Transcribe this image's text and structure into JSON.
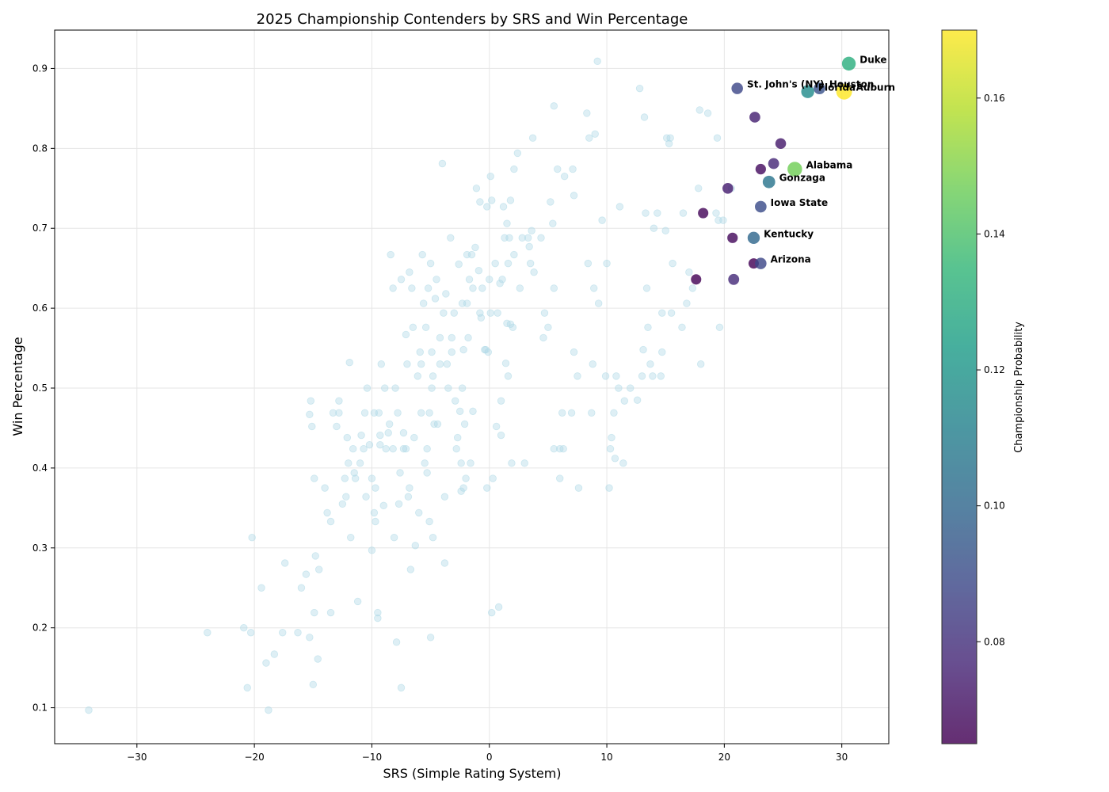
{
  "chart_data": {
    "type": "scatter",
    "title": "2025 Championship Contenders by SRS and Win Percentage",
    "xlabel": "SRS (Simple Rating System)",
    "ylabel": "Win Percentage",
    "xlim": [
      -37,
      34
    ],
    "ylim": [
      0.055,
      0.948
    ],
    "xticks": [
      -30,
      -20,
      -10,
      0,
      10,
      20,
      30
    ],
    "yticks": [
      0.1,
      0.2,
      0.3,
      0.4,
      0.5,
      0.6,
      0.7,
      0.8,
      0.9
    ],
    "grid": true,
    "colorbar": {
      "label": "Championship Probability",
      "range": [
        0.065,
        0.17
      ],
      "ticks": [
        0.08,
        0.1,
        0.12,
        0.14,
        0.16
      ],
      "colormap": "viridis"
    },
    "background_color": "#add8e6",
    "background_points": [
      [
        -34.1,
        0.097
      ],
      [
        -24.0,
        0.194
      ],
      [
        -20.9,
        0.2
      ],
      [
        -20.6,
        0.125
      ],
      [
        -20.3,
        0.194
      ],
      [
        -20.2,
        0.313
      ],
      [
        -19.4,
        0.25
      ],
      [
        -19.0,
        0.156
      ],
      [
        -18.8,
        0.097
      ],
      [
        -18.3,
        0.167
      ],
      [
        -17.6,
        0.194
      ],
      [
        -17.4,
        0.281
      ],
      [
        -16.3,
        0.194
      ],
      [
        -16.0,
        0.25
      ],
      [
        -15.6,
        0.267
      ],
      [
        -15.3,
        0.188
      ],
      [
        -15.2,
        0.484
      ],
      [
        -15.3,
        0.467
      ],
      [
        -15.1,
        0.452
      ],
      [
        -15.0,
        0.129
      ],
      [
        -14.9,
        0.387
      ],
      [
        -14.9,
        0.219
      ],
      [
        -14.8,
        0.29
      ],
      [
        -14.6,
        0.161
      ],
      [
        -14.5,
        0.273
      ],
      [
        -14.0,
        0.375
      ],
      [
        -13.8,
        0.344
      ],
      [
        -13.5,
        0.219
      ],
      [
        -13.5,
        0.333
      ],
      [
        -13.3,
        0.469
      ],
      [
        -13.0,
        0.452
      ],
      [
        -12.8,
        0.484
      ],
      [
        -12.8,
        0.469
      ],
      [
        -12.5,
        0.355
      ],
      [
        -12.3,
        0.387
      ],
      [
        -12.2,
        0.364
      ],
      [
        -12.1,
        0.438
      ],
      [
        -12.0,
        0.406
      ],
      [
        -11.8,
        0.313
      ],
      [
        -11.6,
        0.424
      ],
      [
        -11.5,
        0.394
      ],
      [
        -11.4,
        0.387
      ],
      [
        -11.2,
        0.233
      ],
      [
        -11.0,
        0.406
      ],
      [
        -10.9,
        0.441
      ],
      [
        -10.7,
        0.424
      ],
      [
        -10.6,
        0.469
      ],
      [
        -10.5,
        0.364
      ],
      [
        -10.4,
        0.5
      ],
      [
        -10.2,
        0.429
      ],
      [
        -10.0,
        0.387
      ],
      [
        -10.0,
        0.297
      ],
      [
        -9.8,
        0.469
      ],
      [
        -9.8,
        0.344
      ],
      [
        -9.7,
        0.333
      ],
      [
        -9.7,
        0.375
      ],
      [
        -9.5,
        0.219
      ],
      [
        -9.5,
        0.212
      ],
      [
        -9.4,
        0.469
      ],
      [
        -9.3,
        0.441
      ],
      [
        -9.3,
        0.429
      ],
      [
        -9.2,
        0.53
      ],
      [
        -9.0,
        0.353
      ],
      [
        -8.9,
        0.5
      ],
      [
        -8.8,
        0.424
      ],
      [
        -8.6,
        0.444
      ],
      [
        -8.5,
        0.455
      ],
      [
        -8.4,
        0.667
      ],
      [
        -8.2,
        0.625
      ],
      [
        -8.2,
        0.424
      ],
      [
        -8.1,
        0.313
      ],
      [
        -8.0,
        0.5
      ],
      [
        -7.9,
        0.182
      ],
      [
        -7.8,
        0.469
      ],
      [
        -7.7,
        0.355
      ],
      [
        -7.6,
        0.394
      ],
      [
        -7.5,
        0.636
      ],
      [
        -7.5,
        0.125
      ],
      [
        -7.3,
        0.444
      ],
      [
        -7.3,
        0.424
      ],
      [
        -7.1,
        0.424
      ],
      [
        -7.1,
        0.567
      ],
      [
        -7.0,
        0.53
      ],
      [
        -6.9,
        0.364
      ],
      [
        -6.8,
        0.375
      ],
      [
        -6.8,
        0.645
      ],
      [
        -6.7,
        0.273
      ],
      [
        -6.6,
        0.625
      ],
      [
        -6.5,
        0.576
      ],
      [
        -6.4,
        0.438
      ],
      [
        -6.3,
        0.303
      ],
      [
        -6.1,
        0.515
      ],
      [
        -6.0,
        0.344
      ],
      [
        -5.9,
        0.545
      ],
      [
        -5.8,
        0.469
      ],
      [
        -5.8,
        0.53
      ],
      [
        -5.7,
        0.667
      ],
      [
        -5.6,
        0.606
      ],
      [
        -5.5,
        0.406
      ],
      [
        -5.4,
        0.576
      ],
      [
        -5.3,
        0.424
      ],
      [
        -5.3,
        0.394
      ],
      [
        -5.2,
        0.625
      ],
      [
        -5.1,
        0.469
      ],
      [
        -5.1,
        0.333
      ],
      [
        -5.0,
        0.656
      ],
      [
        -4.9,
        0.545
      ],
      [
        -4.9,
        0.5
      ],
      [
        -4.8,
        0.313
      ],
      [
        -4.8,
        0.515
      ],
      [
        -4.7,
        0.455
      ],
      [
        -4.6,
        0.612
      ],
      [
        -4.5,
        0.636
      ],
      [
        -4.4,
        0.455
      ],
      [
        -4.2,
        0.563
      ],
      [
        -4.2,
        0.53
      ],
      [
        -4.0,
        0.781
      ],
      [
        -3.9,
        0.594
      ],
      [
        -3.8,
        0.364
      ],
      [
        -3.8,
        0.281
      ],
      [
        -3.7,
        0.618
      ],
      [
        -3.6,
        0.53
      ],
      [
        -3.5,
        0.5
      ],
      [
        -3.3,
        0.688
      ],
      [
        -3.2,
        0.545
      ],
      [
        -3.2,
        0.563
      ],
      [
        -3.0,
        0.594
      ],
      [
        -2.9,
        0.484
      ],
      [
        -2.8,
        0.424
      ],
      [
        -2.7,
        0.438
      ],
      [
        -2.6,
        0.655
      ],
      [
        -2.5,
        0.471
      ],
      [
        -2.4,
        0.406
      ],
      [
        -2.3,
        0.606
      ],
      [
        -2.3,
        0.5
      ],
      [
        -2.2,
        0.548
      ],
      [
        -2.2,
        0.375
      ],
      [
        -2.1,
        0.455
      ],
      [
        -2.0,
        0.387
      ],
      [
        -1.9,
        0.667
      ],
      [
        -1.9,
        0.606
      ],
      [
        -1.8,
        0.563
      ],
      [
        -1.7,
        0.636
      ],
      [
        -1.6,
        0.406
      ],
      [
        -1.5,
        0.667
      ],
      [
        -1.4,
        0.471
      ],
      [
        -1.4,
        0.625
      ],
      [
        -1.2,
        0.676
      ],
      [
        -1.1,
        0.75
      ],
      [
        -0.9,
        0.647
      ],
      [
        -0.8,
        0.733
      ],
      [
        -0.8,
        0.594
      ],
      [
        -0.7,
        0.588
      ],
      [
        -0.6,
        0.625
      ],
      [
        -0.4,
        0.548
      ],
      [
        -0.3,
        0.548
      ],
      [
        -0.2,
        0.727
      ],
      [
        -0.1,
        0.545
      ],
      [
        0.0,
        0.636
      ],
      [
        0.1,
        0.594
      ],
      [
        0.1,
        0.765
      ],
      [
        0.2,
        0.735
      ],
      [
        0.3,
        0.387
      ],
      [
        0.5,
        0.656
      ],
      [
        0.6,
        0.452
      ],
      [
        0.7,
        0.594
      ],
      [
        0.8,
        0.226
      ],
      [
        0.9,
        0.631
      ],
      [
        1.0,
        0.484
      ],
      [
        1.0,
        0.441
      ],
      [
        1.1,
        0.636
      ],
      [
        1.2,
        0.727
      ],
      [
        1.3,
        0.688
      ],
      [
        1.4,
        0.531
      ],
      [
        1.5,
        0.706
      ],
      [
        1.5,
        0.581
      ],
      [
        1.6,
        0.656
      ],
      [
        1.6,
        0.515
      ],
      [
        1.7,
        0.688
      ],
      [
        1.8,
        0.735
      ],
      [
        1.8,
        0.58
      ],
      [
        1.9,
        0.406
      ],
      [
        2.0,
        0.576
      ],
      [
        2.1,
        0.667
      ],
      [
        2.1,
        0.774
      ],
      [
        2.4,
        0.794
      ],
      [
        2.6,
        0.625
      ],
      [
        2.8,
        0.688
      ],
      [
        3.0,
        0.406
      ],
      [
        3.3,
        0.688
      ],
      [
        3.4,
        0.677
      ],
      [
        3.5,
        0.656
      ],
      [
        3.6,
        0.697
      ],
      [
        3.7,
        0.813
      ],
      [
        3.8,
        0.645
      ],
      [
        4.4,
        0.688
      ],
      [
        4.6,
        0.563
      ],
      [
        4.7,
        0.594
      ],
      [
        5.0,
        0.576
      ],
      [
        5.2,
        0.733
      ],
      [
        5.4,
        0.706
      ],
      [
        5.5,
        0.424
      ],
      [
        5.5,
        0.625
      ],
      [
        5.5,
        0.853
      ],
      [
        5.8,
        0.774
      ],
      [
        6.0,
        0.424
      ],
      [
        6.0,
        0.387
      ],
      [
        6.2,
        0.469
      ],
      [
        6.3,
        0.424
      ],
      [
        6.4,
        0.765
      ],
      [
        7.0,
        0.469
      ],
      [
        7.1,
        0.774
      ],
      [
        7.2,
        0.545
      ],
      [
        7.2,
        0.741
      ],
      [
        7.5,
        0.515
      ],
      [
        7.6,
        0.375
      ],
      [
        8.3,
        0.844
      ],
      [
        8.4,
        0.656
      ],
      [
        8.5,
        0.813
      ],
      [
        8.7,
        0.469
      ],
      [
        8.8,
        0.53
      ],
      [
        8.9,
        0.625
      ],
      [
        9.0,
        0.818
      ],
      [
        9.2,
        0.909
      ],
      [
        9.3,
        0.606
      ],
      [
        9.6,
        0.71
      ],
      [
        9.9,
        0.515
      ],
      [
        10.0,
        0.656
      ],
      [
        10.2,
        0.375
      ],
      [
        10.3,
        0.424
      ],
      [
        10.4,
        0.438
      ],
      [
        10.6,
        0.469
      ],
      [
        10.7,
        0.412
      ],
      [
        10.8,
        0.515
      ],
      [
        11.0,
        0.5
      ],
      [
        11.1,
        0.727
      ],
      [
        11.4,
        0.406
      ],
      [
        11.5,
        0.484
      ],
      [
        12.0,
        0.5
      ],
      [
        12.6,
        0.485
      ],
      [
        12.8,
        0.875
      ],
      [
        13.1,
        0.548
      ],
      [
        13.2,
        0.839
      ],
      [
        13.3,
        0.719
      ],
      [
        13.4,
        0.625
      ],
      [
        13.5,
        0.576
      ],
      [
        13.7,
        0.53
      ],
      [
        13.9,
        0.515
      ],
      [
        14.0,
        0.7
      ],
      [
        14.3,
        0.719
      ],
      [
        14.7,
        0.594
      ],
      [
        14.7,
        0.545
      ],
      [
        15.0,
        0.697
      ],
      [
        15.1,
        0.813
      ],
      [
        15.3,
        0.806
      ],
      [
        15.4,
        0.813
      ],
      [
        15.5,
        0.594
      ],
      [
        15.6,
        0.656
      ],
      [
        16.4,
        0.576
      ],
      [
        16.5,
        0.719
      ],
      [
        16.8,
        0.606
      ],
      [
        17.0,
        0.645
      ],
      [
        17.3,
        0.625
      ],
      [
        17.8,
        0.75
      ],
      [
        17.9,
        0.848
      ],
      [
        18.0,
        0.53
      ],
      [
        18.6,
        0.844
      ],
      [
        19.3,
        0.719
      ],
      [
        19.4,
        0.813
      ],
      [
        19.5,
        0.71
      ],
      [
        19.6,
        0.576
      ],
      [
        19.9,
        0.71
      ],
      [
        20.6,
        0.75
      ],
      [
        13.0,
        0.515
      ],
      [
        14.6,
        0.515
      ],
      [
        -5.0,
        0.188
      ],
      [
        0.2,
        0.219
      ],
      [
        -0.2,
        0.375
      ],
      [
        -2.4,
        0.371
      ],
      [
        -11.9,
        0.532
      ]
    ],
    "contenders": [
      {
        "x": 30.6,
        "y": 0.906,
        "prob": 0.131,
        "label": "Duke"
      },
      {
        "x": 30.2,
        "y": 0.871,
        "prob": 0.17,
        "label": "Auburn"
      },
      {
        "x": 28.1,
        "y": 0.875,
        "prob": 0.092,
        "label": "Houston"
      },
      {
        "x": 27.1,
        "y": 0.871,
        "prob": 0.116,
        "label": "Florida"
      },
      {
        "x": 21.1,
        "y": 0.875,
        "prob": 0.088,
        "label": "St. John's (NY)"
      },
      {
        "x": 22.6,
        "y": 0.839,
        "prob": 0.075,
        "label": ""
      },
      {
        "x": 24.8,
        "y": 0.806,
        "prob": 0.073,
        "label": ""
      },
      {
        "x": 24.2,
        "y": 0.781,
        "prob": 0.077,
        "label": ""
      },
      {
        "x": 23.1,
        "y": 0.774,
        "prob": 0.069,
        "label": ""
      },
      {
        "x": 26.0,
        "y": 0.774,
        "prob": 0.147,
        "label": "Alabama"
      },
      {
        "x": 20.3,
        "y": 0.75,
        "prob": 0.074,
        "label": ""
      },
      {
        "x": 23.8,
        "y": 0.758,
        "prob": 0.106,
        "label": "Gonzaga"
      },
      {
        "x": 23.1,
        "y": 0.727,
        "prob": 0.09,
        "label": "Iowa State"
      },
      {
        "x": 18.2,
        "y": 0.719,
        "prob": 0.067,
        "label": ""
      },
      {
        "x": 20.7,
        "y": 0.688,
        "prob": 0.068,
        "label": ""
      },
      {
        "x": 22.5,
        "y": 0.688,
        "prob": 0.1,
        "label": "Kentucky"
      },
      {
        "x": 22.5,
        "y": 0.656,
        "prob": 0.066,
        "label": ""
      },
      {
        "x": 23.1,
        "y": 0.656,
        "prob": 0.088,
        "label": "Arizona"
      },
      {
        "x": 17.6,
        "y": 0.636,
        "prob": 0.066,
        "label": ""
      },
      {
        "x": 20.8,
        "y": 0.636,
        "prob": 0.078,
        "label": ""
      }
    ]
  }
}
